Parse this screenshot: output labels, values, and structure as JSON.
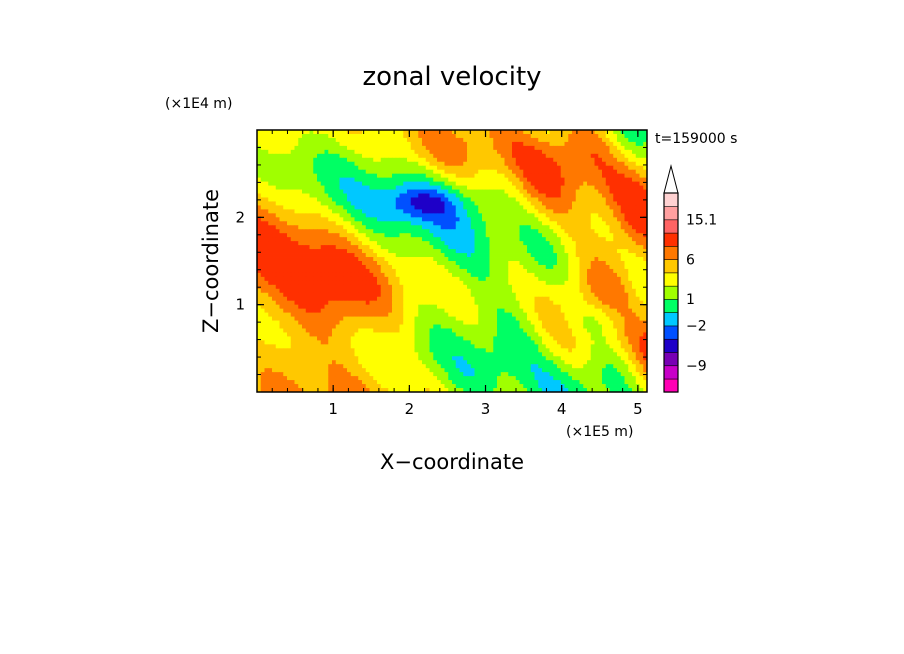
{
  "chart_data": {
    "type": "heatmap",
    "title": "zonal velocity",
    "xlabel": "X−coordinate",
    "ylabel": "Z−coordinate",
    "x_multiplier": "(×1E5 m)",
    "y_multiplier": "(×1E4 m)",
    "annotation": "t=159000 s",
    "x_range": [
      0,
      5.12
    ],
    "y_range": [
      0,
      3.0
    ],
    "x_ticks": [
      {
        "value": 1,
        "label": "1"
      },
      {
        "value": 2,
        "label": "2"
      },
      {
        "value": 3,
        "label": "3"
      },
      {
        "value": 4,
        "label": "4"
      },
      {
        "value": 5,
        "label": "5"
      }
    ],
    "y_ticks": [
      {
        "value": 1,
        "label": "1"
      },
      {
        "value": 2,
        "label": "2"
      }
    ],
    "colorbar": {
      "levels": [
        {
          "color": "#ff00b4"
        },
        {
          "color": "#c800c8"
        },
        {
          "color": "#7800b4"
        },
        {
          "color": "#1e00c8"
        },
        {
          "color": "#0050ff"
        },
        {
          "color": "#00c8ff"
        },
        {
          "color": "#00ff64"
        },
        {
          "color": "#a0ff00"
        },
        {
          "color": "#ffff00"
        },
        {
          "color": "#ffc800"
        },
        {
          "color": "#ff7800"
        },
        {
          "color": "#ff3000"
        },
        {
          "color": "#ff6464"
        },
        {
          "color": "#ffa0a0"
        },
        {
          "color": "#ffd2d2"
        }
      ],
      "tick_labels": [
        {
          "after_level": 2,
          "label": "−9"
        },
        {
          "after_level": 5,
          "label": "−2"
        },
        {
          "after_level": 7,
          "label": "1"
        },
        {
          "after_level": 10,
          "label": "6"
        },
        {
          "after_level": 13,
          "label": "15.1"
        }
      ],
      "extend": "max"
    }
  }
}
